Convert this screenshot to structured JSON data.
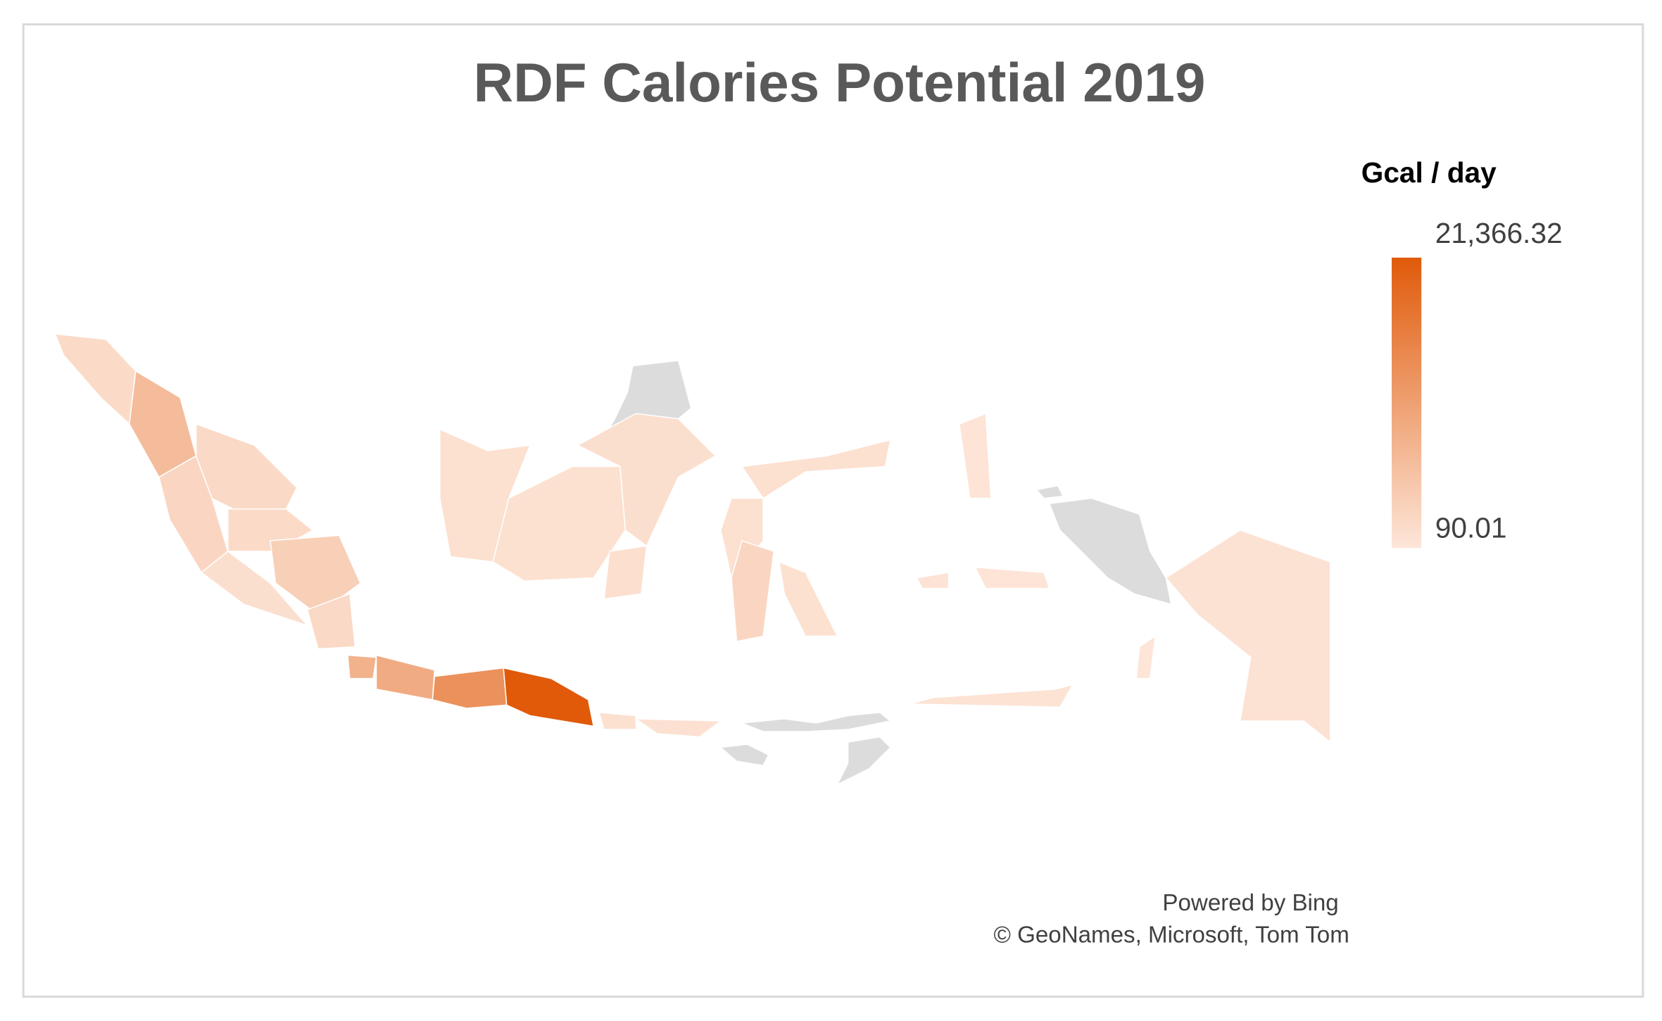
{
  "chart_data": {
    "type": "choropleth",
    "title": "RDF Calories Potential 2019",
    "legend_title": "Gcal / day",
    "legend_ticks": [
      {
        "value": 90.01,
        "label": "90.01"
      },
      {
        "value": 21366.32,
        "label": "21,366.32"
      }
    ],
    "colors": [
      "#fde6d9",
      "#e05a0a"
    ],
    "values": [
      1800,
      6500,
      2500,
      2000,
      1800,
      3500,
      1200,
      2000,
      8000,
      9000,
      13000,
      21366.32,
      1000,
      800,
      1000,
      900,
      1200,
      1100,
      1000,
      1000,
      2500,
      900,
      700,
      500,
      400,
      300,
      400,
      600
    ],
    "attribution": [
      "Powered by Bing",
      "© GeoNames, Microsoft,  Tom Tom"
    ]
  }
}
